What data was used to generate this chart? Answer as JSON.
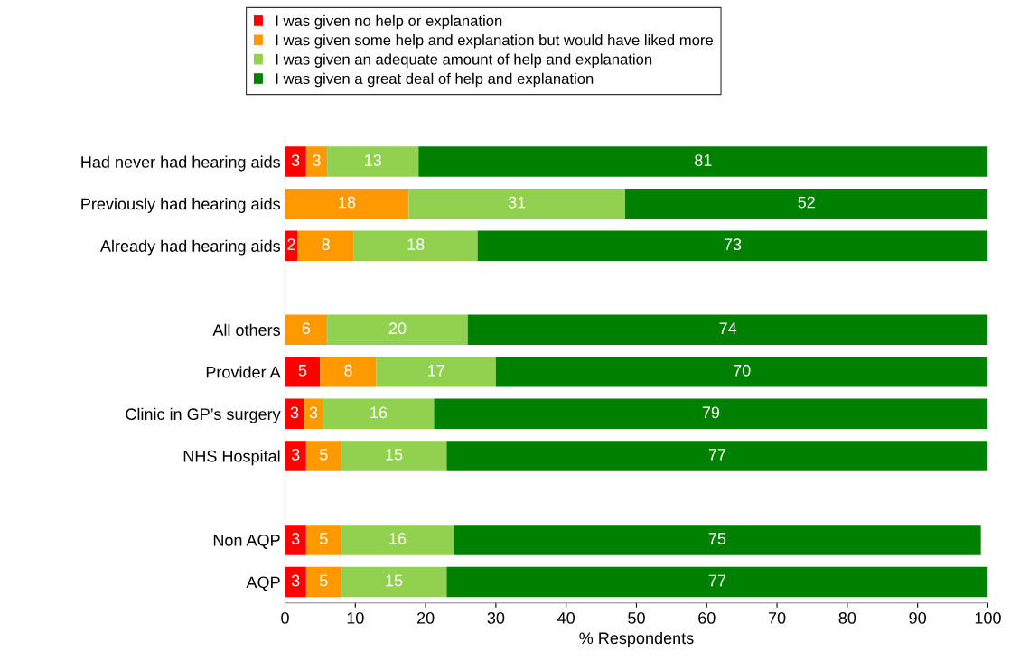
{
  "chart_data": {
    "type": "bar",
    "orientation": "horizontal",
    "stacked": true,
    "xlabel": "% Respondents",
    "categories": [
      "Had never had hearing aids",
      "Previously had hearing aids",
      "Already had hearing aids",
      null,
      "All others",
      "Provider A",
      "Clinic in GP’s surgery",
      "NHS Hospital",
      null,
      "Non AQP",
      "AQP"
    ],
    "series": [
      {
        "name": "I was given no help or explanation",
        "color": "#ff0000",
        "values": [
          3,
          0,
          1.8,
          null,
          0,
          5,
          2.7,
          3,
          null,
          3,
          3
        ],
        "value_labels": [
          "3",
          null,
          "2",
          null,
          null,
          "5",
          "3",
          "3",
          null,
          "3",
          "3"
        ]
      },
      {
        "name": "I was given some help and explanation but would have liked more",
        "color": "#ff9900",
        "values": [
          3,
          17.6,
          8,
          null,
          6,
          8,
          2.7,
          5,
          null,
          5,
          5
        ],
        "value_labels": [
          "3",
          "18",
          "8",
          null,
          "6",
          "8",
          "3",
          "5",
          null,
          "5",
          "5"
        ]
      },
      {
        "name": "I was given an adequate amount of help and explanation",
        "color": "#92d050",
        "values": [
          13,
          30.8,
          17.6,
          null,
          20,
          17,
          15.8,
          15,
          null,
          16,
          15
        ],
        "value_labels": [
          "13",
          "31",
          "18",
          null,
          "20",
          "17",
          "16",
          "15",
          null,
          "16",
          "15"
        ]
      },
      {
        "name": "I was given a great deal of help and explanation",
        "color": "#008000",
        "values": [
          81,
          51.6,
          72.6,
          null,
          74,
          70,
          78.8,
          77,
          null,
          75,
          77
        ],
        "value_labels": [
          "81",
          "52",
          "73",
          null,
          "74",
          "70",
          "79",
          "77",
          null,
          "75",
          "77"
        ]
      }
    ],
    "xlim": [
      0,
      100
    ],
    "xticks": [
      0,
      10,
      20,
      30,
      40,
      50,
      60,
      70,
      80,
      90,
      100
    ],
    "grid": false,
    "legend": "top"
  }
}
